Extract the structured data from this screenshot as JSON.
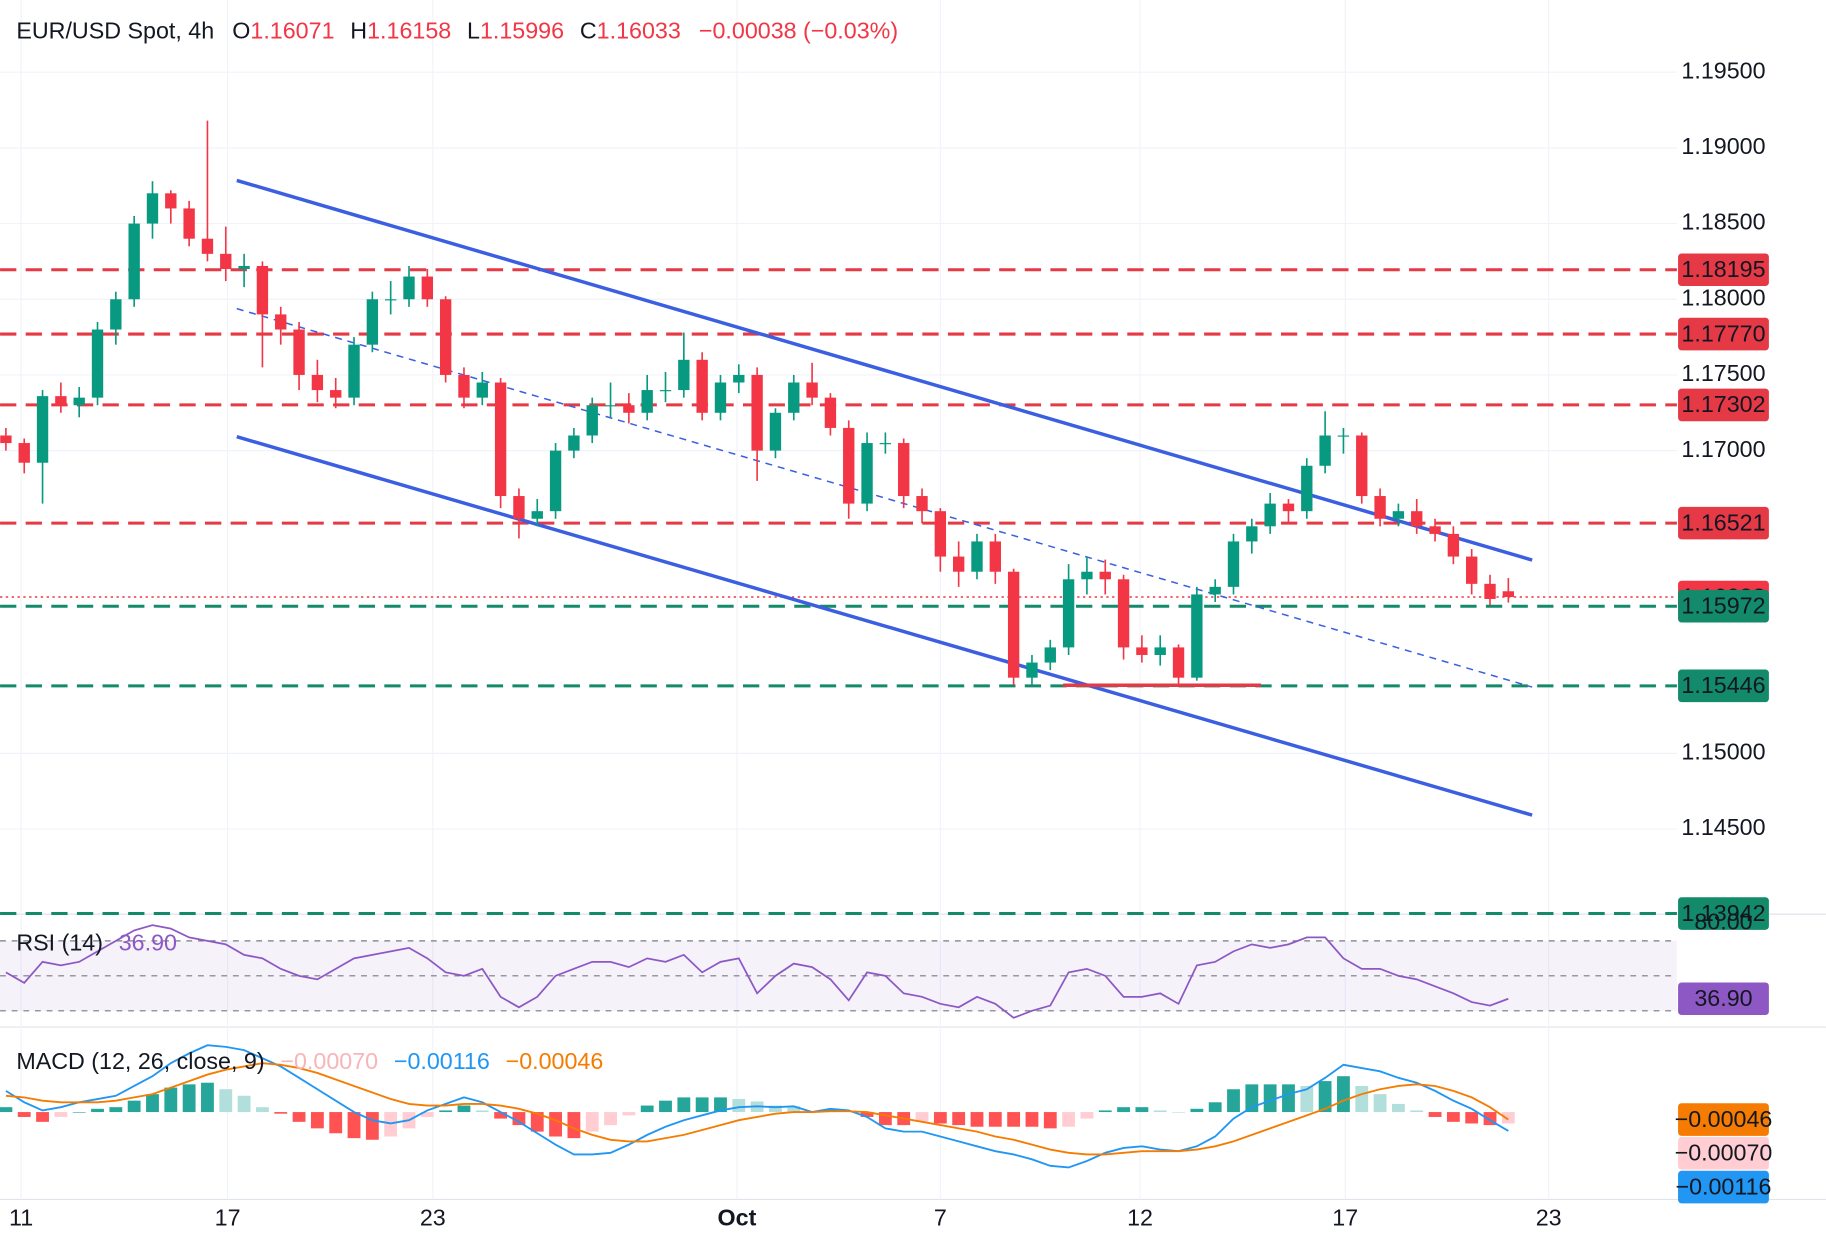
{
  "chart_data": [
    {
      "type": "candlestick",
      "title": "EUR/USD Spot, 4h",
      "ohlc_letters": [
        "O",
        "H",
        "L",
        "C"
      ],
      "ohlc_values": [
        1.16071,
        1.16158,
        1.15996,
        1.16033
      ],
      "change": "−0.00038 (−0.03%)",
      "up_color": "#089981",
      "down_color": "#f23645",
      "xlim": [
        -0.32,
        91.2
      ],
      "xticks": [
        {
          "value": 0.83,
          "label": "11"
        },
        {
          "value": 12.1,
          "label": "17"
        },
        {
          "value": 23.3,
          "label": "23"
        },
        {
          "value": 39.9,
          "label": "Oct",
          "emphasis": true
        },
        {
          "value": 51.0,
          "label": "7"
        },
        {
          "value": 61.9,
          "label": "12"
        },
        {
          "value": 73.1,
          "label": "17"
        },
        {
          "value": 84.2,
          "label": "23"
        }
      ],
      "ylim": [
        1.13938,
        1.19977
      ],
      "yticks": [
        {
          "value": 1.195,
          "label": "1.19500"
        },
        {
          "value": 1.19,
          "label": "1.19000"
        },
        {
          "value": 1.185,
          "label": "1.18500"
        },
        {
          "value": 1.18,
          "label": "1.18000"
        },
        {
          "value": 1.175,
          "label": "1.17500"
        },
        {
          "value": 1.17,
          "label": "1.17000"
        },
        {
          "value": 1.15,
          "label": "1.15000"
        },
        {
          "value": 1.145,
          "label": "1.14500"
        }
      ],
      "grid": true,
      "levels": [
        {
          "value": 1.18195,
          "color": "#e53945",
          "style": "dashed"
        },
        {
          "value": 1.1777,
          "label": "1.17770",
          "color": "#e53945",
          "style": "dashed"
        },
        {
          "value": 1.17302,
          "color": "#e53945",
          "style": "dashed"
        },
        {
          "value": 1.16521,
          "color": "#e53945",
          "style": "dashed"
        },
        {
          "value": 1.16033,
          "color": "#f23645",
          "style": "dotted"
        },
        {
          "value": 1.15972,
          "color": "#138a6a",
          "style": "dashed"
        },
        {
          "value": 1.15446,
          "color": "#138a6a",
          "style": "dashed"
        },
        {
          "value": 1.13942,
          "color": "#138a6a",
          "style": "dashed"
        }
      ],
      "lines": [
        {
          "x": [
            12.6,
            83.3
          ],
          "y": [
            1.18785,
            1.16277
          ],
          "color": "#3b5fe0",
          "style": "solid"
        },
        {
          "x": [
            12.6,
            83.3
          ],
          "y": [
            1.17092,
            1.14592
          ],
          "color": "#3b5fe0",
          "style": "solid"
        },
        {
          "x": [
            12.6,
            83.3
          ],
          "y": [
            1.17938,
            1.15438
          ],
          "color": "#3b5fe0",
          "style": "dashed"
        },
        {
          "x": [
            57.7,
            68.5
          ],
          "y": [
            1.1545,
            1.1545
          ],
          "color": "#e53945",
          "style": "solid"
        }
      ],
      "candles": [
        [
          1.171,
          1.1715,
          1.17,
          1.1705
        ],
        [
          1.1705,
          1.1708,
          1.1685,
          1.1692
        ],
        [
          1.1692,
          1.174,
          1.1665,
          1.1736
        ],
        [
          1.1736,
          1.1745,
          1.1725,
          1.173
        ],
        [
          1.173,
          1.1742,
          1.1722,
          1.1735
        ],
        [
          1.1735,
          1.1785,
          1.173,
          1.178
        ],
        [
          1.178,
          1.1805,
          1.177,
          1.18
        ],
        [
          1.18,
          1.1855,
          1.1795,
          1.185
        ],
        [
          1.185,
          1.1878,
          1.184,
          1.187
        ],
        [
          1.187,
          1.1872,
          1.185,
          1.186
        ],
        [
          1.186,
          1.1865,
          1.1835,
          1.184
        ],
        [
          1.184,
          1.1918,
          1.1825,
          1.183
        ],
        [
          1.183,
          1.1848,
          1.1812,
          1.182
        ],
        [
          1.182,
          1.183,
          1.1808,
          1.1822
        ],
        [
          1.1822,
          1.1825,
          1.1755,
          1.179
        ],
        [
          1.179,
          1.1795,
          1.177,
          1.178
        ],
        [
          1.178,
          1.1785,
          1.174,
          1.175
        ],
        [
          1.175,
          1.176,
          1.1732,
          1.174
        ],
        [
          1.174,
          1.1748,
          1.1728,
          1.1735
        ],
        [
          1.1735,
          1.1775,
          1.173,
          1.177
        ],
        [
          1.177,
          1.1805,
          1.1765,
          1.18
        ],
        [
          1.18,
          1.1812,
          1.179,
          1.18
        ],
        [
          1.18,
          1.1822,
          1.1795,
          1.1815
        ],
        [
          1.1815,
          1.182,
          1.1795,
          1.18
        ],
        [
          1.18,
          1.1802,
          1.1745,
          1.175
        ],
        [
          1.175,
          1.1755,
          1.1728,
          1.1735
        ],
        [
          1.1735,
          1.1752,
          1.173,
          1.1745
        ],
        [
          1.1745,
          1.1748,
          1.1662,
          1.167
        ],
        [
          1.167,
          1.1675,
          1.1642,
          1.1655
        ],
        [
          1.1655,
          1.1668,
          1.165,
          1.166
        ],
        [
          1.166,
          1.1705,
          1.1655,
          1.17
        ],
        [
          1.17,
          1.1715,
          1.1695,
          1.171
        ],
        [
          1.171,
          1.1735,
          1.1705,
          1.173
        ],
        [
          1.173,
          1.1745,
          1.1722,
          1.173
        ],
        [
          1.173,
          1.1738,
          1.1718,
          1.1725
        ],
        [
          1.1725,
          1.175,
          1.172,
          1.174
        ],
        [
          1.174,
          1.1752,
          1.1732,
          1.174
        ],
        [
          1.174,
          1.1778,
          1.1735,
          1.176
        ],
        [
          1.176,
          1.1765,
          1.172,
          1.1725
        ],
        [
          1.1725,
          1.175,
          1.172,
          1.1745
        ],
        [
          1.1745,
          1.1757,
          1.1738,
          1.175
        ],
        [
          1.175,
          1.1755,
          1.168,
          1.17
        ],
        [
          1.17,
          1.1728,
          1.1695,
          1.1725
        ],
        [
          1.1725,
          1.175,
          1.172,
          1.1745
        ],
        [
          1.1745,
          1.1758,
          1.173,
          1.1735
        ],
        [
          1.1735,
          1.1738,
          1.171,
          1.1715
        ],
        [
          1.1715,
          1.172,
          1.1655,
          1.1665
        ],
        [
          1.1665,
          1.1712,
          1.166,
          1.1705
        ],
        [
          1.1705,
          1.1712,
          1.1698,
          1.1705
        ],
        [
          1.1705,
          1.1708,
          1.1662,
          1.167
        ],
        [
          1.167,
          1.1675,
          1.1652,
          1.166
        ],
        [
          1.166,
          1.1662,
          1.162,
          1.163
        ],
        [
          1.163,
          1.164,
          1.161,
          1.162
        ],
        [
          1.162,
          1.1645,
          1.1615,
          1.164
        ],
        [
          1.164,
          1.1645,
          1.1612,
          1.162
        ],
        [
          1.162,
          1.1622,
          1.1545,
          1.155
        ],
        [
          1.155,
          1.1565,
          1.1545,
          1.156
        ],
        [
          1.156,
          1.1575,
          1.1555,
          1.157
        ],
        [
          1.157,
          1.1625,
          1.1565,
          1.1615
        ],
        [
          1.1615,
          1.163,
          1.1605,
          1.162
        ],
        [
          1.162,
          1.1628,
          1.1605,
          1.1615
        ],
        [
          1.1615,
          1.1618,
          1.1562,
          1.157
        ],
        [
          1.157,
          1.1578,
          1.156,
          1.1565
        ],
        [
          1.1565,
          1.1578,
          1.1558,
          1.157
        ],
        [
          1.157,
          1.1572,
          1.1545,
          1.155
        ],
        [
          1.155,
          1.161,
          1.1548,
          1.1605
        ],
        [
          1.1605,
          1.1615,
          1.16,
          1.161
        ],
        [
          1.161,
          1.1645,
          1.1605,
          1.164
        ],
        [
          1.164,
          1.1655,
          1.1632,
          1.165
        ],
        [
          1.165,
          1.1672,
          1.1645,
          1.1665
        ],
        [
          1.1665,
          1.1668,
          1.1652,
          1.166
        ],
        [
          1.166,
          1.1695,
          1.1655,
          1.169
        ],
        [
          1.169,
          1.1726,
          1.1685,
          1.171
        ],
        [
          1.171,
          1.1715,
          1.1698,
          1.171
        ],
        [
          1.171,
          1.1712,
          1.1665,
          1.167
        ],
        [
          1.167,
          1.1675,
          1.165,
          1.1655
        ],
        [
          1.1655,
          1.1665,
          1.165,
          1.166
        ],
        [
          1.166,
          1.1668,
          1.1645,
          1.165
        ],
        [
          1.165,
          1.1655,
          1.164,
          1.1645
        ],
        [
          1.1645,
          1.165,
          1.1625,
          1.163
        ],
        [
          1.163,
          1.1635,
          1.1605,
          1.1612
        ],
        [
          1.1612,
          1.1618,
          1.1598,
          1.1602
        ],
        [
          1.16071,
          1.16158,
          1.15996,
          1.16033
        ]
      ]
    },
    {
      "type": "rsi",
      "title": "RSI (14)",
      "color": "#8e58c4",
      "band_color": "#7e57c2",
      "ylim": [
        20.7,
        85.3
      ],
      "yticks": [
        {
          "value": 80,
          "label": "80.00"
        }
      ],
      "levels": [
        70,
        50,
        30
      ],
      "values": [
        52,
        46,
        58,
        56,
        58,
        64,
        70,
        76,
        79,
        77,
        72,
        70,
        68,
        62,
        60,
        54,
        50,
        48,
        54,
        60,
        62,
        64,
        66,
        60,
        52,
        50,
        54,
        38,
        32,
        38,
        50,
        54,
        58,
        58,
        55,
        60,
        58,
        62,
        52,
        58,
        60,
        40,
        50,
        57,
        55,
        48,
        36,
        52,
        50,
        40,
        38,
        34,
        32,
        38,
        34,
        26,
        30,
        33,
        52,
        54,
        50,
        38,
        38,
        40,
        34,
        56,
        58,
        64,
        68,
        66,
        68,
        72,
        72,
        60,
        54,
        54,
        50,
        48,
        44,
        40,
        35,
        33,
        36.9
      ],
      "last_label": "36.90"
    },
    {
      "type": "macd",
      "title": "MACD (12, 26, close, 9)",
      "ylim": [
        -0.00536,
        0.005
      ],
      "series": [
        {
          "kind": "histogram",
          "colors": [
            "#26a69a",
            "#b2dfdb",
            "#ff5252",
            "#ffcdd2"
          ],
          "color": "#f7c5c8",
          "label_color": "#ffcdd2",
          "last_label": "−0.00070",
          "values": [
            0.0003,
            -0.0003,
            -0.0006,
            -0.0003,
            0,
            0.0002,
            0.0003,
            0.0007,
            0.0011,
            0.0015,
            0.0017,
            0.0018,
            0.0014,
            0.001,
            0.0003,
            -0.0001,
            -0.0006,
            -0.001,
            -0.0013,
            -0.0016,
            -0.0017,
            -0.0015,
            -0.001,
            -0.0003,
            0.0001,
            0.0004,
            0.0001,
            -0.0004,
            -0.0008,
            -0.0012,
            -0.0015,
            -0.0016,
            -0.0012,
            -0.0008,
            -0.0002,
            0.0004,
            0.0007,
            0.0009,
            0.0009,
            0.0009,
            0.0008,
            0.00065,
            0.0004,
            0.00035,
            0,
            0.00015,
            5e-05,
            -0.0003,
            -0.0008,
            -0.0008,
            -0.0006,
            -0.0007,
            -0.0008,
            -0.0009,
            -0.0009,
            -0.0009,
            -0.0009,
            -0.001,
            -0.0009,
            -0.0004,
            0.0001,
            0.0003,
            0.0003,
            0.0001,
            0,
            0.0002,
            0.0006,
            0.0014,
            0.0017,
            0.0017,
            0.0017,
            0.0016,
            0.0019,
            0.0022,
            0.0016,
            0.0011,
            0.0005,
            0.0001,
            -0.0003,
            -0.0006,
            -0.0007,
            -0.0008,
            -0.0007
          ]
        },
        {
          "kind": "line",
          "color": "#2196f3",
          "last_label": "−0.00116",
          "values": [
            0.0013,
            0.0006,
            0.0001,
            0.0003,
            0.0006,
            0.0008,
            0.001,
            0.0016,
            0.0022,
            0.003,
            0.0036,
            0.0041,
            0.004,
            0.0038,
            0.0033,
            0.0028,
            0.0021,
            0.0014,
            0.0007,
            0,
            -0.0005,
            -0.0007,
            -0.0005,
            0.0001,
            0.0005,
            0.0009,
            0.0006,
            0,
            -0.0006,
            -0.0013,
            -0.002,
            -0.0026,
            -0.0026,
            -0.0025,
            -0.002,
            -0.0014,
            -0.0009,
            -0.0005,
            -0.0002,
            0.0001,
            0.0003,
            0.00035,
            0.0003,
            0.00035,
            0,
            0.0002,
            0.0001,
            -0.0003,
            -0.001,
            -0.0012,
            -0.0012,
            -0.0015,
            -0.0018,
            -0.0021,
            -0.0024,
            -0.0026,
            -0.0029,
            -0.0033,
            -0.0034,
            -0.003,
            -0.0025,
            -0.0022,
            -0.0021,
            -0.0023,
            -0.0024,
            -0.0021,
            -0.0015,
            -0.0004,
            0.0003,
            0.0007,
            0.0011,
            0.0014,
            0.0021,
            0.0029,
            0.0027,
            0.0025,
            0.0021,
            0.0018,
            0.0013,
            0.0007,
            0.0002,
            -0.0005,
            -0.00116
          ]
        },
        {
          "kind": "line",
          "color": "#f57c00",
          "last_label": "−0.00046",
          "values": [
            0.001,
            0.0009,
            0.0007,
            0.0006,
            0.0006,
            0.0006,
            0.0007,
            0.0009,
            0.0011,
            0.0015,
            0.0019,
            0.0023,
            0.0026,
            0.0028,
            0.003,
            0.0029,
            0.0027,
            0.0024,
            0.002,
            0.0016,
            0.0012,
            0.0008,
            0.0005,
            0.0004,
            0.0004,
            0.0005,
            0.0005,
            0.0004,
            0.0002,
            -0.0001,
            -0.0005,
            -0.001,
            -0.0014,
            -0.0017,
            -0.0018,
            -0.0018,
            -0.0016,
            -0.0014,
            -0.0011,
            -0.0008,
            -0.0005,
            -0.0003,
            -0.0001,
            0,
            0,
            5e-05,
            5e-05,
            0,
            -0.0002,
            -0.0004,
            -0.0006,
            -0.0008,
            -0.001,
            -0.0012,
            -0.0015,
            -0.0017,
            -0.002,
            -0.0023,
            -0.0025,
            -0.0026,
            -0.0026,
            -0.0025,
            -0.0024,
            -0.0024,
            -0.0024,
            -0.0023,
            -0.0021,
            -0.0018,
            -0.0014,
            -0.001,
            -0.0006,
            -0.0002,
            0.0002,
            0.0007,
            0.0011,
            0.0014,
            0.0016,
            0.0017,
            0.0016,
            0.0013,
            0.0009,
            0.0003,
            -0.00046
          ]
        }
      ]
    }
  ]
}
